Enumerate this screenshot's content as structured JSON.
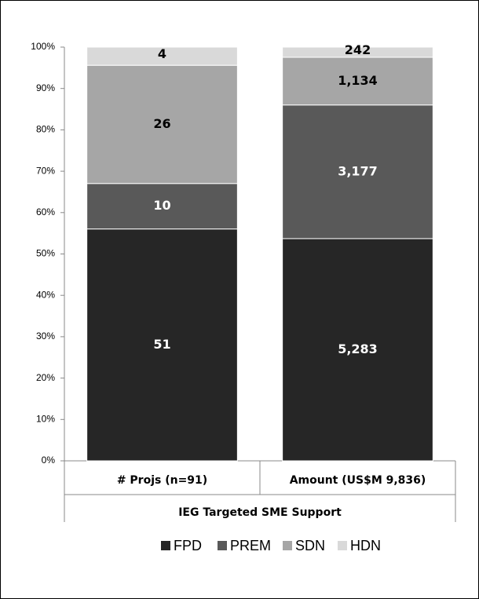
{
  "chart_data": {
    "type": "bar",
    "stacking": "percent",
    "categories": [
      "# Projs (n=91)",
      "Amount (US$M 9,836)"
    ],
    "group_label": "IEG Targeted SME Support",
    "series": [
      {
        "name": "FPD",
        "color": "#262626",
        "values": [
          51,
          5283
        ],
        "value_labels": [
          "51",
          "5,283"
        ]
      },
      {
        "name": "PREM",
        "color": "#595959",
        "values": [
          10,
          3177
        ],
        "value_labels": [
          "10",
          "3,177"
        ]
      },
      {
        "name": "SDN",
        "color": "#a6a6a6",
        "values": [
          26,
          1134
        ],
        "value_labels": [
          "26",
          "1,134"
        ]
      },
      {
        "name": "HDN",
        "color": "#d9d9d9",
        "values": [
          4,
          242
        ]
      }
    ],
    "ylim": [
      0,
      100
    ],
    "yticks": [
      {
        "value": 0,
        "label": "0%"
      },
      {
        "value": 10,
        "label": "10%"
      },
      {
        "value": 20,
        "label": "20%"
      },
      {
        "value": 30,
        "label": "30%"
      },
      {
        "value": 40,
        "label": "40%"
      },
      {
        "value": 50,
        "label": "50%"
      },
      {
        "value": 60,
        "label": "60%"
      },
      {
        "value": 70,
        "label": "70%"
      },
      {
        "value": 80,
        "label": "80%"
      },
      {
        "value": 90,
        "label": "90%"
      },
      {
        "value": 100,
        "label": "100%"
      }
    ],
    "legend": "bottom"
  }
}
